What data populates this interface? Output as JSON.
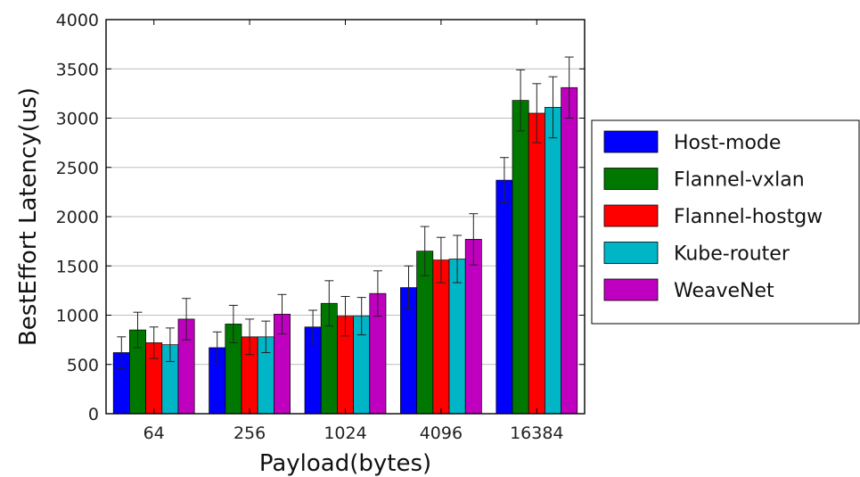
{
  "chart_data": {
    "type": "bar",
    "title": "",
    "xlabel": "Payload(bytes)",
    "ylabel": "BestEffort Latency(us)",
    "ylim": [
      0,
      4000
    ],
    "yticks": [
      "0",
      "500",
      "1000",
      "1500",
      "2000",
      "2500",
      "3000",
      "3500",
      "4000"
    ],
    "ytick_values": [
      0,
      500,
      1000,
      1500,
      2000,
      2500,
      3000,
      3500,
      4000
    ],
    "grid": "horizontal",
    "legend_position": "right",
    "categories": [
      "64",
      "256",
      "1024",
      "4096",
      "16384"
    ],
    "series": [
      {
        "name": "Host-mode",
        "color": "#0000ff",
        "values": [
          620,
          670,
          880,
          1280,
          2370
        ],
        "errors": [
          160,
          160,
          170,
          220,
          230
        ]
      },
      {
        "name": "Flannel-vxlan",
        "color": "#007800",
        "values": [
          850,
          910,
          1120,
          1650,
          3180
        ],
        "errors": [
          180,
          190,
          230,
          250,
          310
        ]
      },
      {
        "name": "Flannel-hostgw",
        "color": "#ff0000",
        "values": [
          720,
          780,
          990,
          1560,
          3050
        ],
        "errors": [
          160,
          180,
          200,
          230,
          300
        ]
      },
      {
        "name": "Kube-router",
        "color": "#00b5c5",
        "values": [
          700,
          780,
          990,
          1570,
          3110
        ],
        "errors": [
          170,
          160,
          190,
          240,
          310
        ]
      },
      {
        "name": "WeaveNet",
        "color": "#bf00bf",
        "values": [
          960,
          1010,
          1220,
          1770,
          3310
        ],
        "errors": [
          210,
          200,
          230,
          260,
          310
        ]
      }
    ]
  }
}
